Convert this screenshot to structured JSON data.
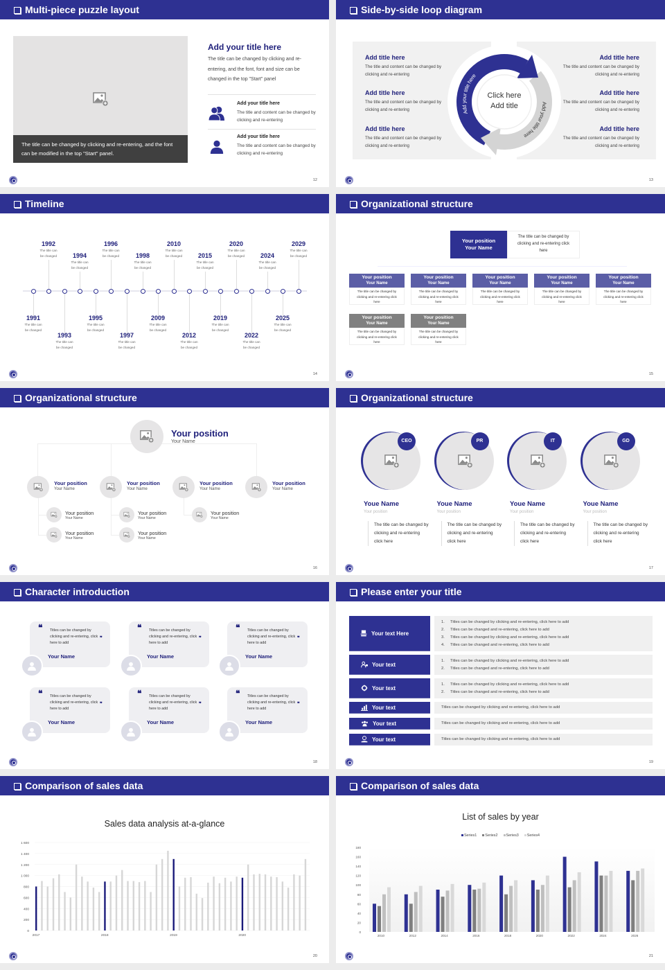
{
  "theme": {
    "primary": "#2e3192",
    "primary_light": "#5b5ea6",
    "gray_header": "#808080",
    "panel": "#f0f0f0",
    "caption_bg": "#404040"
  },
  "slides": [
    {
      "title": "Multi-piece puzzle layout",
      "page": "12",
      "image_caption": "The title can be changed by clicking and re-entering, and the font can be modified in the top \"Start\" panel.",
      "heading": "Add your title here",
      "paragraph": "The title can be changed by clicking and re-entering, and the font, font and size can be changed in the top \"Start\" panel",
      "items": [
        {
          "icon": "group-icon",
          "title": "Add your title here",
          "text": "The title and content can be changed by clicking and re-entering"
        },
        {
          "icon": "person-icon",
          "title": "Add your title here",
          "text": "The title and content can be changed by clicking and re-entering"
        }
      ]
    },
    {
      "title": "Side-by-side loop diagram",
      "page": "13",
      "center": [
        "Click here",
        "Add title"
      ],
      "arc_left": "Add your title here",
      "arc_right": "Add your title here",
      "left_items": [
        {
          "title": "Add title here",
          "text": "The title and content can be changed by clicking and re-entering"
        },
        {
          "title": "Add title here",
          "text": "The title and content can be changed by clicking and re-entering"
        },
        {
          "title": "Add title here",
          "text": "The title and content can be changed by clicking and re-entering"
        }
      ],
      "right_items": [
        {
          "title": "Add title here",
          "text": "The title and content can be changed by clicking and re-entering"
        },
        {
          "title": "Add title here",
          "text": "The title and content can be changed by clicking and re-entering"
        },
        {
          "title": "Add title here",
          "text": "The title and content can be changed by clicking and re-entering"
        }
      ]
    },
    {
      "title": "Timeline",
      "page": "14",
      "events": [
        {
          "year": "1991",
          "text": "The title can be changed"
        },
        {
          "year": "1992",
          "text": "The title can be changed"
        },
        {
          "year": "1993",
          "text": "The title can be changed"
        },
        {
          "year": "1994",
          "text": "The title can be changed"
        },
        {
          "year": "1995",
          "text": "The title can be changed"
        },
        {
          "year": "1996",
          "text": "The title can be changed"
        },
        {
          "year": "1997",
          "text": "The title can be changed"
        },
        {
          "year": "1998",
          "text": "The title can be changed"
        },
        {
          "year": "2009",
          "text": "The title can be changed"
        },
        {
          "year": "2010",
          "text": "The title can be changed"
        },
        {
          "year": "2012",
          "text": "The title can be changed"
        },
        {
          "year": "2015",
          "text": "The title can be changed"
        },
        {
          "year": "2019",
          "text": "The title can be changed"
        },
        {
          "year": "2020",
          "text": "The title can be changed"
        },
        {
          "year": "2022",
          "text": "The title can be changed"
        },
        {
          "year": "2024",
          "text": "The title can be changed"
        },
        {
          "year": "2025",
          "text": "The title can be changed"
        },
        {
          "year": "2029",
          "text": "The title can be changed"
        }
      ]
    },
    {
      "title": "Organizational structure",
      "page": "15",
      "top": {
        "position": "Your position",
        "name": "Your Name",
        "text": "The title can be changed by clicking and re-entering click here"
      },
      "row1": [
        {
          "position": "Your position",
          "name": "Your Name",
          "text": "The title can be changed by clicking and re-entering click here"
        },
        {
          "position": "Your position",
          "name": "Your Name",
          "text": "The title can be changed by clicking and re-entering click here"
        },
        {
          "position": "Your position",
          "name": "Your Name",
          "text": "The title can be changed by clicking and re-entering click here"
        },
        {
          "position": "Your position",
          "name": "Your Name",
          "text": "The title can be changed by clicking and re-entering click here"
        },
        {
          "position": "Your position",
          "name": "Your Name",
          "text": "The title can be changed by clicking and re-entering click here"
        }
      ],
      "row2": [
        {
          "position": "Your position",
          "name": "Your Name",
          "text": "The title can be changed by clicking and re-entering click here"
        },
        {
          "position": "Your position",
          "name": "Your Name",
          "text": "The title can be changed by clicking and re-entering click here"
        }
      ]
    },
    {
      "title": "Organizational structure",
      "page": "16",
      "top": {
        "position": "Your position",
        "name": "Your Name"
      },
      "branches": [
        {
          "position": "Your position",
          "name": "Your Name",
          "children": [
            {
              "position": "Your position",
              "name": "Your Name"
            },
            {
              "position": "Your position",
              "name": "Your Name"
            }
          ]
        },
        {
          "position": "Your position",
          "name": "Your Name",
          "children": [
            {
              "position": "Your position",
              "name": "Your Name"
            },
            {
              "position": "Your position",
              "name": "Your Name"
            }
          ]
        },
        {
          "position": "Your position",
          "name": "Your Name",
          "children": [
            {
              "position": "Your position",
              "name": "Your Name"
            }
          ]
        },
        {
          "position": "Your position",
          "name": "Your Name",
          "children": []
        }
      ]
    },
    {
      "title": "Organizational structure",
      "page": "17",
      "members": [
        {
          "badge": "CEO",
          "name": "Youe Name",
          "position": "Your position",
          "text": "The title can be changed by clicking and re-entering click here"
        },
        {
          "badge": "PR",
          "name": "Youe Name",
          "position": "Your position",
          "text": "The title can be changed by clicking and re-entering click here"
        },
        {
          "badge": "IT",
          "name": "Youe Name",
          "position": "Your position",
          "text": "The title can be changed by clicking and re-entering click here"
        },
        {
          "badge": "GD",
          "name": "Youe Name",
          "position": "Your position",
          "text": "The title can be changed by clicking and re-entering click here"
        }
      ]
    },
    {
      "title": "Character introduction",
      "page": "18",
      "cards": [
        {
          "quote": "Titles can be changed by clicking and re-entering, click here to add",
          "name": "Your Name"
        },
        {
          "quote": "Titles can be changed by clicking and re-entering, click here to add",
          "name": "Your Name"
        },
        {
          "quote": "Titles can be changed by clicking and re-entering, click here to add",
          "name": "Your Name"
        },
        {
          "quote": "Titles can be changed by clicking and re-entering, click here to add",
          "name": "Your Name"
        },
        {
          "quote": "Titles can be changed by clicking and re-entering, click here to add",
          "name": "Your Name"
        },
        {
          "quote": "Titles can be changed by clicking and re-entering, click here to add",
          "name": "Your Name"
        }
      ]
    },
    {
      "title": "Please enter your title",
      "page": "19",
      "rows": [
        {
          "icon": "presentation-icon",
          "label": "Your text Here",
          "numbered": true,
          "lines": [
            "Titles can be changed by clicking and re-entering, click here to add",
            "Titles can be changed and re-entering, click here to add",
            "Titles can be changed by clicking and re-entering, click here to add",
            "Titles can be changed and re-entering, click here to add"
          ]
        },
        {
          "icon": "users-icon",
          "label": "Your text",
          "numbered": true,
          "lines": [
            "Titles can be changed by clicking and re-entering, click here to add",
            "Titles can be changed and re-entering, click here to add"
          ]
        },
        {
          "icon": "shield-icon",
          "label": "Your text",
          "numbered": true,
          "lines": [
            "Titles can be changed by clicking and re-entering, click here to add",
            "Titles can be changed and re-entering, click here to add"
          ]
        },
        {
          "icon": "bar-chart-icon",
          "label": "Your text",
          "numbered": false,
          "lines": [
            "Titles can be changed by clicking and re-entering, click here to add"
          ]
        },
        {
          "icon": "team-icon",
          "label": "Your text",
          "numbered": false,
          "lines": [
            "Titles can be changed by clicking and re-entering, click here to add"
          ]
        },
        {
          "icon": "money-hand-icon",
          "label": "Your text",
          "numbered": false,
          "lines": [
            "Titles can be changed by clicking and re-entering, click here to add"
          ]
        }
      ]
    },
    {
      "title": "Comparison of sales data",
      "page": "20"
    },
    {
      "title": "Comparison of sales data",
      "page": "21"
    }
  ],
  "chart_data": [
    {
      "type": "bar",
      "title": "Sales data analysis at-a-glance",
      "xlabel": "",
      "ylabel": "",
      "ylim": [
        0,
        1600
      ],
      "yticks": [
        "0",
        "200",
        "400",
        "600",
        "800",
        "1 000",
        "1 200",
        "1 400",
        "1 600"
      ],
      "x_tick_labels": [
        {
          "index": 0,
          "label": "2017"
        },
        {
          "index": 12,
          "label": "2018"
        },
        {
          "index": 24,
          "label": "2019"
        },
        {
          "index": 36,
          "label": "2020"
        }
      ],
      "highlight_indices": [
        0,
        12,
        24,
        36
      ],
      "highlight_color": "#1a1a7a",
      "bar_color": "#d6d6d6",
      "values": [
        800,
        900,
        800,
        950,
        1020,
        700,
        600,
        1200,
        980,
        890,
        780,
        700,
        890,
        890,
        1000,
        1100,
        900,
        900,
        880,
        900,
        700,
        1200,
        1300,
        1450,
        1300,
        800,
        960,
        970,
        670,
        590,
        870,
        980,
        860,
        960,
        890,
        980,
        960,
        1200,
        1020,
        1030,
        1020,
        980,
        970,
        890,
        780,
        1020,
        1000,
        1300
      ],
      "grid": true
    },
    {
      "type": "bar",
      "title": "List of sales by year",
      "xlabel": "",
      "ylabel": "",
      "ylim": [
        0,
        180
      ],
      "yticks": [
        "0",
        "20",
        "40",
        "60",
        "80",
        "100",
        "120",
        "140",
        "160",
        "180"
      ],
      "categories": [
        "2010",
        "2012",
        "2014",
        "2016",
        "2018",
        "2020",
        "2022",
        "2024",
        "2026"
      ],
      "legend": "top",
      "series": [
        {
          "name": "Series1",
          "color": "#2e3192",
          "values": [
            60,
            80,
            90,
            100,
            120,
            110,
            160,
            150,
            130
          ]
        },
        {
          "name": "Series2",
          "color": "#7f7f7f",
          "values": [
            55,
            60,
            75,
            90,
            80,
            90,
            95,
            120,
            110
          ]
        },
        {
          "name": "Series3",
          "color": "#bfbfbf",
          "values": [
            80,
            85,
            88,
            92,
            98,
            100,
            110,
            120,
            130
          ]
        },
        {
          "name": "Series4",
          "color": "#d9d9d9",
          "values": [
            95,
            98,
            102,
            105,
            110,
            120,
            127,
            130,
            135
          ]
        }
      ]
    }
  ]
}
